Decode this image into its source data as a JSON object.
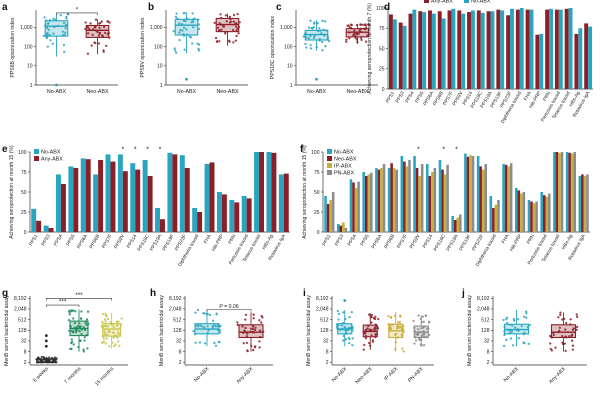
{
  "colors": {
    "no_abx": "#2aa5c0",
    "neo_abx": "#8b1f27",
    "any_abx": "#8b1f27",
    "ip_abx": "#c8ae3a",
    "pn_abx": "#8c8c8c",
    "age_6w": "#2b2b2b",
    "age_7m": "#1b8a5a",
    "age_15m": "#c9c44a"
  },
  "chart_data": [
    {
      "id": "a",
      "type": "box",
      "panel_label": "a",
      "ylabel": "PPS6B opsonization index",
      "yscale": "log10",
      "yticks": [
        {
          "v": 1,
          "label": "1"
        },
        {
          "v": 10,
          "label": "10"
        },
        {
          "v": 100,
          "label": "100"
        },
        {
          "v": 1000,
          "label": "1,000"
        }
      ],
      "ylim": [
        1,
        8000
      ],
      "categories": [
        "No-ABX",
        "Neo-ABX"
      ],
      "colorkeys": [
        "no_abx",
        "neo_abx"
      ],
      "boxes": [
        {
          "q1": 350,
          "median": 1150,
          "q3": 2200,
          "lo": 30,
          "hi": 5000,
          "out": [
            1
          ]
        },
        {
          "q1": 300,
          "median": 700,
          "q3": 1250,
          "lo": 40,
          "hi": 2600,
          "out": []
        }
      ],
      "bracket": {
        "from": 0,
        "to": 1,
        "y": 5600,
        "label": "*"
      }
    },
    {
      "id": "b",
      "type": "box",
      "panel_label": "b",
      "ylabel": "PPS9V opsonization index",
      "yscale": "log10",
      "yticks": [
        {
          "v": 1,
          "label": "1"
        },
        {
          "v": 10,
          "label": "10"
        },
        {
          "v": 100,
          "label": "100"
        },
        {
          "v": 1000,
          "label": "1,000"
        }
      ],
      "ylim": [
        1,
        8000
      ],
      "categories": [
        "No-ABX",
        "Neo-ABX"
      ],
      "colorkeys": [
        "no_abx",
        "neo_abx"
      ],
      "boxes": [
        {
          "q1": 400,
          "median": 1300,
          "q3": 2600,
          "lo": 45,
          "hi": 6000,
          "out": [
            2
          ]
        },
        {
          "q1": 600,
          "median": 1400,
          "q3": 2900,
          "lo": 110,
          "hi": 5200,
          "out": []
        }
      ]
    },
    {
      "id": "c",
      "type": "box",
      "panel_label": "c",
      "ylabel": "PPS18C opsonization index",
      "yscale": "log10",
      "yticks": [
        {
          "v": 1,
          "label": "1"
        },
        {
          "v": 10,
          "label": "10"
        },
        {
          "v": 100,
          "label": "100"
        },
        {
          "v": 1000,
          "label": "1,000"
        }
      ],
      "ylim": [
        1,
        8000
      ],
      "categories": [
        "No-ABX",
        "Neo-ABX"
      ],
      "colorkeys": [
        "no_abx",
        "neo_abx"
      ],
      "boxes": [
        {
          "q1": 220,
          "median": 420,
          "q3": 700,
          "lo": 60,
          "hi": 2400,
          "out": [
            2
          ]
        },
        {
          "q1": 320,
          "median": 560,
          "q3": 850,
          "lo": 140,
          "hi": 1500,
          "out": []
        }
      ]
    },
    {
      "id": "d",
      "type": "bar",
      "panel_label": "d",
      "ylabel": "Achieving seroprotection at month 7 (%)",
      "ylim": [
        0,
        100
      ],
      "yticks": [
        0,
        25,
        50,
        75,
        100
      ],
      "categories": [
        "PPS1",
        "PPS3",
        "PPS4",
        "PPS5",
        "PPS6A",
        "PPS6B",
        "PPS7F",
        "PPS9V",
        "PPS14",
        "PPS18C",
        "PPS19A",
        "PPS19F",
        "PPS23F",
        "Diphtheria toxoid",
        "FHA",
        "Hib-PRP",
        "PRN",
        "Pertussis toxoid",
        "Tetanus toxoid",
        "HBs-Ag",
        "Rotavirus IgA"
      ],
      "series": [
        {
          "name": "Any-ABX",
          "colorkey": "any_abx",
          "values": [
            92,
            82,
            93,
            96,
            97,
            96,
            97,
            97,
            95,
            97,
            96,
            98,
            91,
            98,
            98,
            67,
            98,
            98,
            99,
            68,
            81
          ]
        },
        {
          "name": "No-ABX",
          "colorkey": "no_abx",
          "values": [
            86,
            78,
            98,
            95,
            93,
            87,
            99,
            93,
            97,
            94,
            96,
            97,
            99,
            100,
            98,
            68,
            99,
            98,
            100,
            75,
            77
          ]
        }
      ],
      "legend": [
        "Any-ABX",
        "No-ABX"
      ]
    },
    {
      "id": "e",
      "type": "bar",
      "panel_label": "e",
      "ylabel": "Achieving seroprotection at month 15 (%)",
      "ylim": [
        0,
        100
      ],
      "yticks": [
        0,
        25,
        50,
        75,
        100
      ],
      "categories": [
        "PPS1",
        "PPS3",
        "PPS4",
        "PPS5",
        "PPS6A",
        "PPS6B",
        "PPS7F",
        "PPS9V",
        "PPS14",
        "PPS18C",
        "PPS19A",
        "PPS19F",
        "PPS23F",
        "Diphtheria toxoid",
        "FHA",
        "Hib-PRP",
        "PRN",
        "Pertussis toxoid",
        "Tetanus toxoid",
        "HBs-Ag",
        "Rotavirus IgA"
      ],
      "series": [
        {
          "name": "No-ABX",
          "colorkey": "no_abx",
          "values": [
            29,
            8,
            72,
            82,
            92,
            72,
            97,
            97,
            86,
            90,
            30,
            99,
            96,
            30,
            85,
            50,
            40,
            45,
            100,
            100,
            72
          ]
        },
        {
          "name": "Any-ABX",
          "colorkey": "any_abx",
          "values": [
            14,
            5,
            60,
            80,
            91,
            90,
            88,
            76,
            78,
            70,
            16,
            97,
            80,
            25,
            87,
            47,
            37,
            42,
            100,
            99,
            73
          ]
        }
      ],
      "legend": [
        "No-ABX",
        "Any-ABX"
      ],
      "stars": [
        7,
        8,
        9,
        10
      ]
    },
    {
      "id": "f",
      "type": "bar",
      "panel_label": "f",
      "ylabel": "Achieving seroprotection at month 15 (%)",
      "ylim": [
        0,
        100
      ],
      "yticks": [
        0,
        25,
        50,
        75,
        100
      ],
      "categories": [
        "PPS1",
        "PPS3",
        "PPS4",
        "PPS5",
        "PPS6A",
        "PPS6B",
        "PPS7F",
        "PPS9V",
        "PPS14",
        "PPS18C",
        "PPS19A",
        "PPS19F",
        "PPS23F",
        "Diphtheria toxoid",
        "FHA",
        "Hib-PRP",
        "PRN",
        "Pertussis toxoid",
        "Tetanus toxoid",
        "HBs-Ag",
        "Rotavirus IgA"
      ],
      "series": [
        {
          "name": "No-ABX",
          "colorkey": "no_abx",
          "values": [
            45,
            10,
            66,
            75,
            80,
            80,
            95,
            95,
            85,
            90,
            20,
            98,
            95,
            45,
            85,
            55,
            40,
            50,
            100,
            100,
            70
          ]
        },
        {
          "name": "Neo-ABX",
          "colorkey": "neo_abx",
          "values": [
            35,
            8,
            62,
            70,
            78,
            86,
            88,
            80,
            70,
            78,
            15,
            94,
            82,
            30,
            84,
            52,
            38,
            46,
            100,
            99,
            72
          ]
        },
        {
          "name": "IP-ABX",
          "colorkey": "ip_abx",
          "values": [
            40,
            12,
            55,
            72,
            80,
            80,
            82,
            70,
            75,
            72,
            18,
            96,
            78,
            34,
            82,
            48,
            36,
            44,
            99,
            98,
            70
          ]
        },
        {
          "name": "PN-ABX",
          "colorkey": "pn_abx",
          "values": [
            50,
            5,
            63,
            74,
            85,
            78,
            90,
            85,
            80,
            84,
            22,
            95,
            85,
            40,
            86,
            50,
            38,
            48,
            100,
            100,
            72
          ]
        }
      ],
      "legend": [
        "No-ABX",
        "Neo-ABX",
        "IP-ABX",
        "PN-ABX"
      ],
      "stars": [
        7,
        9,
        10
      ]
    },
    {
      "id": "g",
      "type": "box",
      "panel_label": "g",
      "ylabel": "MenB serum bactericidal assay",
      "yscale": "log2",
      "yticks": [
        {
          "v": 2,
          "label": "2"
        },
        {
          "v": 8,
          "label": "8"
        },
        {
          "v": 32,
          "label": "32"
        },
        {
          "v": 128,
          "label": "128"
        },
        {
          "v": 512,
          "label": "512"
        },
        {
          "v": 2048,
          "label": "2,048"
        },
        {
          "v": 8192,
          "label": "8,192"
        }
      ],
      "ylim": [
        1.4,
        11000
      ],
      "categories": [
        "6 weeks",
        "7 months",
        "15 months"
      ],
      "colorkeys": [
        "age_6w",
        "age_7m",
        "age_15m"
      ],
      "boxes": [
        {
          "q1": 2,
          "median": 2,
          "q3": 3,
          "lo": 2,
          "hi": 4,
          "out": [
            16,
            32,
            64
          ]
        },
        {
          "q1": 64,
          "median": 160,
          "q3": 420,
          "lo": 8,
          "hi": 1900,
          "out": []
        },
        {
          "q1": 60,
          "median": 150,
          "q3": 300,
          "lo": 12,
          "hi": 1200,
          "out": []
        }
      ],
      "brackets": [
        {
          "from": 0,
          "to": 1,
          "y": 3400,
          "label": "***"
        },
        {
          "from": 0,
          "to": 2,
          "y": 8000,
          "label": "***"
        }
      ]
    },
    {
      "id": "h",
      "type": "box",
      "panel_label": "h",
      "ylabel": "MenB serum bactericidal assay",
      "yscale": "log2",
      "yticks": [
        {
          "v": 2,
          "label": "2"
        },
        {
          "v": 8,
          "label": "8"
        },
        {
          "v": 32,
          "label": "32"
        },
        {
          "v": 128,
          "label": "128"
        },
        {
          "v": 512,
          "label": "512"
        },
        {
          "v": 2048,
          "label": "2,048"
        },
        {
          "v": 8192,
          "label": "8,192"
        }
      ],
      "ylim": [
        1.4,
        11000
      ],
      "categories": [
        "No-ABX",
        "Any-ABX"
      ],
      "colorkeys": [
        "no_abx",
        "any_abx"
      ],
      "boxes": [
        {
          "q1": 80,
          "median": 150,
          "q3": 300,
          "lo": 16,
          "hi": 1800,
          "out": []
        },
        {
          "q1": 50,
          "median": 100,
          "q3": 260,
          "lo": 8,
          "hi": 1300,
          "out": []
        }
      ],
      "bracket": {
        "from": 0,
        "to": 1,
        "y": 1900,
        "label": "P = 0.06"
      }
    },
    {
      "id": "i",
      "type": "box",
      "panel_label": "i",
      "ylabel": "MenB serum bactericidal assay",
      "yscale": "log2",
      "yticks": [
        {
          "v": 2,
          "label": "2"
        },
        {
          "v": 8,
          "label": "8"
        },
        {
          "v": 32,
          "label": "32"
        },
        {
          "v": 128,
          "label": "128"
        },
        {
          "v": 512,
          "label": "512"
        },
        {
          "v": 2048,
          "label": "2,048"
        },
        {
          "v": 8192,
          "label": "8,192"
        }
      ],
      "ylim": [
        1.4,
        11000
      ],
      "categories": [
        "No-ABX",
        "Neo-ABX",
        "IP-ABX",
        "PN-ABX"
      ],
      "colorkeys": [
        "no_abx",
        "neo_abx",
        "ip_abx",
        "pn_abx"
      ],
      "boxes": [
        {
          "q1": 80,
          "median": 150,
          "q3": 300,
          "lo": 16,
          "hi": 1800,
          "out": [
            6144
          ]
        },
        {
          "q1": 55,
          "median": 110,
          "q3": 250,
          "lo": 10,
          "hi": 1200,
          "out": []
        },
        {
          "q1": 50,
          "median": 120,
          "q3": 280,
          "lo": 8,
          "hi": 1400,
          "out": []
        },
        {
          "q1": 50,
          "median": 100,
          "q3": 220,
          "lo": 16,
          "hi": 900,
          "out": []
        }
      ]
    },
    {
      "id": "j",
      "type": "box",
      "panel_label": "j",
      "ylabel": "MenB serum bactericidal assay",
      "yscale": "log2",
      "yticks": [
        {
          "v": 2,
          "label": "2"
        },
        {
          "v": 8,
          "label": "8"
        },
        {
          "v": 32,
          "label": "32"
        },
        {
          "v": 128,
          "label": "128"
        },
        {
          "v": 512,
          "label": "512"
        },
        {
          "v": 2048,
          "label": "2,048"
        },
        {
          "v": 8192,
          "label": "8,192"
        }
      ],
      "ylim": [
        1.4,
        11000
      ],
      "categories": [
        "No-ABX",
        "Any-ABX"
      ],
      "colorkeys": [
        "no_abx",
        "any_abx"
      ],
      "boxes": [
        {
          "q1": 80,
          "median": 140,
          "q3": 280,
          "lo": 16,
          "hi": 1800,
          "out": []
        },
        {
          "q1": 50,
          "median": 100,
          "q3": 260,
          "lo": 8,
          "hi": 1300,
          "out": []
        }
      ]
    }
  ]
}
